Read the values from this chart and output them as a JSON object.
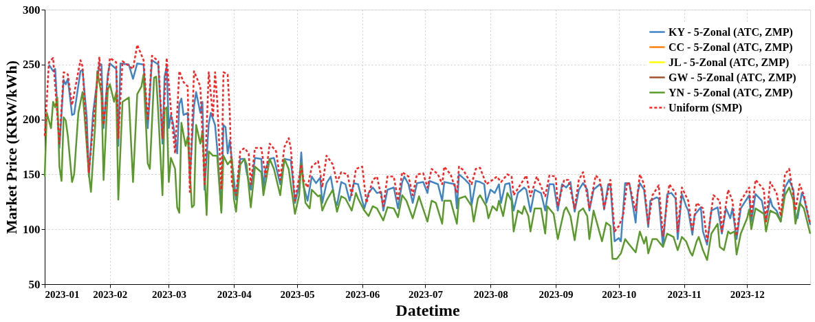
{
  "chart_data": {
    "type": "line",
    "xlabel": "Datetime",
    "ylabel": "Market Price (KRW/kWh)",
    "xlim": [
      "2023-01-01",
      "2023-12-31"
    ],
    "xticks": [
      "2023-01",
      "2023-02",
      "2023-03",
      "2023-04",
      "2023-05",
      "2023-06",
      "2023-07",
      "2023-08",
      "2023-09",
      "2023-10",
      "2023-11",
      "2023-12"
    ],
    "ylim": [
      50,
      300
    ],
    "yticks": [
      50,
      100,
      150,
      200,
      250,
      300
    ],
    "grid": true,
    "legend": "top right",
    "marker": "none",
    "series": [
      {
        "name": "KY - 5-Zonal (ATC, ZMP)",
        "color": "#3f85c6",
        "line_style": "solid",
        "x": [
          "2023-01-03",
          "2023-01-05",
          "2023-01-06",
          "2023-01-08",
          "2023-01-10",
          "2023-01-11",
          "2023-01-12",
          "2023-01-14",
          "2023-01-15",
          "2023-01-18",
          "2023-01-19",
          "2023-01-21",
          "2023-01-22",
          "2023-01-24",
          "2023-01-27",
          "2023-01-28",
          "2023-01-29",
          "2023-01-31",
          "2023-02-01",
          "2023-02-04",
          "2023-02-05",
          "2023-02-06",
          "2023-02-10",
          "2023-02-12",
          "2023-02-14",
          "2023-02-17",
          "2023-02-19",
          "2023-02-21",
          "2023-02-24",
          "2023-02-26",
          "2023-02-27",
          "2023-02-28",
          "2023-03-01",
          "2023-03-02",
          "2023-03-03",
          "2023-03-05",
          "2023-03-06",
          "2023-03-07",
          "2023-03-08",
          "2023-03-10",
          "2023-03-11",
          "2023-03-13",
          "2023-03-14",
          "2023-03-16",
          "2023-03-17",
          "2023-03-18",
          "2023-03-20",
          "2023-03-21",
          "2023-03-23",
          "2023-03-24",
          "2023-03-26",
          "2023-03-27",
          "2023-03-28",
          "2023-03-29",
          "2023-03-30",
          "2023-04-01",
          "2023-04-02",
          "2023-04-04",
          "2023-04-06",
          "2023-04-07",
          "2023-04-09",
          "2023-04-11",
          "2023-04-14",
          "2023-04-15",
          "2023-04-16",
          "2023-04-18",
          "2023-04-20",
          "2023-04-23",
          "2023-04-25",
          "2023-04-28",
          "2023-04-29",
          "2023-04-30",
          "2023-05-02",
          "2023-05-03",
          "2023-05-04",
          "2023-05-06",
          "2023-05-08",
          "2023-05-10",
          "2023-05-12",
          "2023-05-13",
          "2023-05-15",
          "2023-05-17",
          "2023-05-19",
          "2023-05-20",
          "2023-05-22",
          "2023-05-24",
          "2023-05-26",
          "2023-05-28",
          "2023-05-30",
          "2023-06-01",
          "2023-06-02",
          "2023-06-04",
          "2023-06-06",
          "2023-06-08",
          "2023-06-10",
          "2023-06-11",
          "2023-06-13",
          "2023-06-16",
          "2023-06-18",
          "2023-06-20",
          "2023-06-21",
          "2023-06-23",
          "2023-06-25",
          "2023-06-27",
          "2023-06-30",
          "2023-07-02",
          "2023-07-03",
          "2023-07-07",
          "2023-07-09",
          "2023-07-10",
          "2023-07-15",
          "2023-07-16",
          "2023-07-17",
          "2023-07-20",
          "2023-07-22",
          "2023-07-23",
          "2023-07-25",
          "2023-07-27",
          "2023-07-29",
          "2023-07-30",
          "2023-08-01",
          "2023-08-03",
          "2023-08-05",
          "2023-08-06",
          "2023-08-08",
          "2023-08-10",
          "2023-08-12",
          "2023-08-14",
          "2023-08-17",
          "2023-08-18",
          "2023-08-20",
          "2023-08-22",
          "2023-08-25",
          "2023-08-27",
          "2023-08-29",
          "2023-08-31",
          "2023-09-02",
          "2023-09-04",
          "2023-09-06",
          "2023-09-08",
          "2023-09-10",
          "2023-09-12",
          "2023-09-14",
          "2023-09-16",
          "2023-09-17",
          "2023-09-19",
          "2023-09-22",
          "2023-09-23",
          "2023-09-24",
          "2023-09-26",
          "2023-09-27",
          "2023-09-29",
          "2023-10-01",
          "2023-10-02",
          "2023-10-04",
          "2023-10-06",
          "2023-10-09",
          "2023-10-10",
          "2023-10-11",
          "2023-10-13",
          "2023-10-15",
          "2023-10-16",
          "2023-10-19",
          "2023-10-20",
          "2023-10-22",
          "2023-10-24",
          "2023-10-26",
          "2023-10-28",
          "2023-10-29",
          "2023-10-31",
          "2023-11-02",
          "2023-11-03",
          "2023-11-05",
          "2023-11-06",
          "2023-11-09",
          "2023-11-10",
          "2023-11-12",
          "2023-11-14",
          "2023-11-17",
          "2023-11-19",
          "2023-11-21",
          "2023-11-23",
          "2023-11-24",
          "2023-11-26",
          "2023-11-28",
          "2023-12-02",
          "2023-12-03",
          "2023-12-05",
          "2023-12-08",
          "2023-12-10",
          "2023-12-12",
          "2023-12-13",
          "2023-12-15",
          "2023-12-17",
          "2023-12-19",
          "2023-12-21",
          "2023-12-23",
          "2023-12-24",
          "2023-12-25",
          "2023-12-27",
          "2023-12-28",
          "2023-12-31"
        ],
        "values": [
          250,
          244,
          246,
          174,
          236,
          232,
          237,
          204,
          205,
          244,
          245,
          202,
          148,
          206,
          251,
          250,
          192,
          241,
          251,
          246,
          176,
          251,
          250,
          237,
          251,
          250,
          192,
          254,
          250,
          178,
          239,
          248,
          192,
          204,
          197,
          169,
          214,
          219,
          204,
          206,
          145,
          212,
          225,
          206,
          216,
          136,
          196,
          206,
          195,
          174,
          117,
          195,
          193,
          169,
          181,
          145,
          127,
          164,
          164,
          152,
          136,
          165,
          164,
          138,
          155,
          164,
          165,
          141,
          164,
          163,
          145,
          124,
          140,
          170,
          140,
          126,
          148,
          142,
          147,
          124,
          142,
          148,
          126,
          122,
          143,
          141,
          126,
          142,
          141,
          126,
          119,
          133,
          138,
          133,
          134,
          117,
          136,
          138,
          119,
          143,
          148,
          141,
          124,
          142,
          143,
          133,
          144,
          141,
          126,
          143,
          141,
          119,
          150,
          145,
          141,
          122,
          144,
          143,
          141,
          124,
          136,
          133,
          141,
          124,
          141,
          142,
          117,
          133,
          138,
          136,
          116,
          136,
          133,
          117,
          141,
          141,
          117,
          141,
          138,
          143,
          116,
          136,
          142,
          136,
          117,
          136,
          141,
          137,
          118,
          141,
          140,
          89,
          92,
          89,
          142,
          142,
          106,
          133,
          142,
          136,
          102,
          126,
          129,
          128,
          84,
          132,
          133,
          128,
          91,
          132,
          121,
          117,
          95,
          113,
          120,
          98,
          86,
          117,
          120,
          96,
          119,
          110,
          119,
          91,
          119,
          131,
          107,
          132,
          126,
          107,
          128,
          121,
          117,
          107,
          138,
          145,
          136,
          112,
          110,
          133,
          129,
          104
        ]
      },
      {
        "name": "CC - 5-Zonal (ATC, ZMP)",
        "color": "#ff7f0e",
        "line_style": "solid"
      },
      {
        "name": "JL - 5-Zonal (ATC, ZMP)",
        "color": "#ffff00",
        "line_style": "solid"
      },
      {
        "name": "GW - 5-Zonal (ATC, ZMP)",
        "color": "#a0522d",
        "line_style": "solid"
      },
      {
        "name": "YN - 5-Zonal (ATC, ZMP)",
        "color": "#5a9a2a",
        "line_style": "solid",
        "x": [
          "2023-01-01",
          "2023-01-02",
          "2023-01-04",
          "2023-01-05",
          "2023-01-06",
          "2023-01-07",
          "2023-01-08",
          "2023-01-09",
          "2023-01-10",
          "2023-01-11",
          "2023-01-12",
          "2023-01-14",
          "2023-01-15",
          "2023-01-17",
          "2023-01-19",
          "2023-01-20",
          "2023-01-22",
          "2023-01-23",
          "2023-01-25",
          "2023-01-26",
          "2023-01-28",
          "2023-01-29",
          "2023-01-31",
          "2023-02-01",
          "2023-02-03",
          "2023-02-04",
          "2023-02-05",
          "2023-02-07",
          "2023-02-10",
          "2023-02-12",
          "2023-02-14",
          "2023-02-16",
          "2023-02-17",
          "2023-02-19",
          "2023-02-20",
          "2023-02-22",
          "2023-02-23",
          "2023-02-24",
          "2023-02-26",
          "2023-02-27",
          "2023-02-28",
          "2023-03-01",
          "2023-03-02",
          "2023-03-04",
          "2023-03-05",
          "2023-03-06",
          "2023-03-07",
          "2023-03-09",
          "2023-03-10",
          "2023-03-12",
          "2023-03-13",
          "2023-03-14",
          "2023-03-16",
          "2023-03-17",
          "2023-03-19",
          "2023-03-20",
          "2023-03-22",
          "2023-03-24",
          "2023-03-26",
          "2023-03-27",
          "2023-03-29",
          "2023-03-31",
          "2023-04-01",
          "2023-04-02",
          "2023-04-04",
          "2023-04-06",
          "2023-04-07",
          "2023-04-09",
          "2023-04-11",
          "2023-04-14",
          "2023-04-15",
          "2023-04-18",
          "2023-04-20",
          "2023-04-23",
          "2023-04-25",
          "2023-04-27",
          "2023-04-30",
          "2023-05-02",
          "2023-05-03",
          "2023-05-05",
          "2023-05-07",
          "2023-05-08",
          "2023-05-11",
          "2023-05-12",
          "2023-05-13",
          "2023-05-15",
          "2023-05-18",
          "2023-05-20",
          "2023-05-22",
          "2023-05-24",
          "2023-05-27",
          "2023-05-29",
          "2023-05-30",
          "2023-06-02",
          "2023-06-04",
          "2023-06-06",
          "2023-06-08",
          "2023-06-11",
          "2023-06-13",
          "2023-06-16",
          "2023-06-18",
          "2023-06-20",
          "2023-06-22",
          "2023-06-25",
          "2023-06-28",
          "2023-06-29",
          "2023-07-02",
          "2023-07-04",
          "2023-07-06",
          "2023-07-09",
          "2023-07-10",
          "2023-07-13",
          "2023-07-16",
          "2023-07-17",
          "2023-07-20",
          "2023-07-23",
          "2023-07-24",
          "2023-07-26",
          "2023-07-27",
          "2023-07-30",
          "2023-07-31",
          "2023-08-02",
          "2023-08-04",
          "2023-08-05",
          "2023-08-07",
          "2023-08-09",
          "2023-08-11",
          "2023-08-12",
          "2023-08-14",
          "2023-08-16",
          "2023-08-17",
          "2023-08-19",
          "2023-08-20",
          "2023-08-22",
          "2023-08-25",
          "2023-08-27",
          "2023-08-28",
          "2023-08-31",
          "2023-09-02",
          "2023-09-05",
          "2023-09-06",
          "2023-09-08",
          "2023-09-10",
          "2023-09-12",
          "2023-09-14",
          "2023-09-16",
          "2023-09-17",
          "2023-09-19",
          "2023-09-21",
          "2023-09-23",
          "2023-09-25",
          "2023-09-27",
          "2023-09-28",
          "2023-09-30",
          "2023-10-02",
          "2023-10-04",
          "2023-10-06",
          "2023-10-09",
          "2023-10-11",
          "2023-10-13",
          "2023-10-14",
          "2023-10-15",
          "2023-10-17",
          "2023-10-19",
          "2023-10-22",
          "2023-10-24",
          "2023-10-27",
          "2023-10-29",
          "2023-10-31",
          "2023-11-02",
          "2023-11-04",
          "2023-11-05",
          "2023-11-07",
          "2023-11-08",
          "2023-11-10",
          "2023-11-12",
          "2023-11-14",
          "2023-11-17",
          "2023-11-18",
          "2023-11-20",
          "2023-11-22",
          "2023-11-23",
          "2023-11-25",
          "2023-11-26",
          "2023-11-28",
          "2023-12-01",
          "2023-12-02",
          "2023-12-03",
          "2023-12-05",
          "2023-12-09",
          "2023-12-10",
          "2023-12-12",
          "2023-12-15",
          "2023-12-17",
          "2023-12-19",
          "2023-12-21",
          "2023-12-23",
          "2023-12-24",
          "2023-12-26",
          "2023-12-28",
          "2023-12-31"
        ],
        "values": [
          148,
          206,
          192,
          216,
          211,
          220,
          157,
          144,
          202,
          199,
          185,
          143,
          150,
          206,
          225,
          202,
          150,
          134,
          195,
          244,
          223,
          145,
          227,
          232,
          216,
          225,
          127,
          216,
          220,
          143,
          223,
          230,
          241,
          160,
          155,
          238,
          239,
          206,
          131,
          209,
          211,
          143,
          165,
          155,
          120,
          115,
          197,
          176,
          184,
          120,
          122,
          195,
          178,
          189,
          113,
          171,
          167,
          167,
          115,
          167,
          159,
          164,
          127,
          116,
          159,
          164,
          159,
          120,
          157,
          152,
          131,
          164,
          155,
          131,
          164,
          155,
          114,
          131,
          160,
          124,
          119,
          136,
          130,
          131,
          117,
          126,
          136,
          116,
          130,
          128,
          117,
          133,
          128,
          117,
          112,
          121,
          119,
          108,
          120,
          119,
          111,
          131,
          126,
          110,
          130,
          124,
          107,
          126,
          124,
          105,
          126,
          126,
          105,
          128,
          130,
          121,
          107,
          128,
          131,
          121,
          110,
          121,
          117,
          126,
          112,
          133,
          126,
          98,
          117,
          114,
          121,
          112,
          98,
          119,
          119,
          96,
          121,
          114,
          91,
          117,
          120,
          112,
          90,
          116,
          119,
          112,
          91,
          117,
          103,
          89,
          106,
          103,
          73,
          73,
          78,
          91,
          86,
          79,
          98,
          87,
          93,
          78,
          91,
          91,
          84,
          96,
          93,
          81,
          93,
          89,
          79,
          76,
          89,
          93,
          81,
          72,
          96,
          105,
          84,
          81,
          98,
          96,
          98,
          77,
          96,
          110,
          118,
          100,
          119,
          114,
          98,
          117,
          114,
          107,
          131,
          138,
          126,
          105,
          124,
          119,
          96
        ]
      },
      {
        "name": "Uniform (SMP)",
        "color": "#ff2020",
        "line_style": "dashed",
        "x": [
          "2023-01-01",
          "2023-01-03",
          "2023-01-05",
          "2023-01-08",
          "2023-01-10",
          "2023-01-12",
          "2023-01-14",
          "2023-01-18",
          "2023-01-19",
          "2023-01-22",
          "2023-01-27",
          "2023-01-29",
          "2023-02-01",
          "2023-02-04",
          "2023-02-05",
          "2023-02-07",
          "2023-02-12",
          "2023-02-14",
          "2023-02-17",
          "2023-02-19",
          "2023-02-21",
          "2023-02-24",
          "2023-02-26",
          "2023-02-28",
          "2023-03-02",
          "2023-03-04",
          "2023-03-06",
          "2023-03-08",
          "2023-03-10",
          "2023-03-11",
          "2023-03-13",
          "2023-03-16",
          "2023-03-18",
          "2023-03-20",
          "2023-03-22",
          "2023-03-23",
          "2023-03-24",
          "2023-03-26",
          "2023-03-27",
          "2023-03-29",
          "2023-03-30",
          "2023-03-31",
          "2023-04-02",
          "2023-04-04",
          "2023-04-06",
          "2023-04-08",
          "2023-04-09",
          "2023-04-11",
          "2023-04-14",
          "2023-04-16",
          "2023-04-18",
          "2023-04-21",
          "2023-04-23",
          "2023-04-25",
          "2023-04-27",
          "2023-04-28",
          "2023-04-30",
          "2023-05-03",
          "2023-05-04",
          "2023-05-06",
          "2023-05-08",
          "2023-05-11",
          "2023-05-12",
          "2023-05-13",
          "2023-05-15",
          "2023-05-18",
          "2023-05-20",
          "2023-05-22",
          "2023-05-25",
          "2023-05-27",
          "2023-05-29",
          "2023-06-01",
          "2023-06-03",
          "2023-06-06",
          "2023-06-08",
          "2023-06-11",
          "2023-06-13",
          "2023-06-16",
          "2023-06-18",
          "2023-06-20",
          "2023-06-23",
          "2023-06-25",
          "2023-06-27",
          "2023-06-30",
          "2023-07-02",
          "2023-07-04",
          "2023-07-07",
          "2023-07-09",
          "2023-07-10",
          "2023-07-13",
          "2023-07-16",
          "2023-07-17",
          "2023-07-19",
          "2023-07-23",
          "2023-07-25",
          "2023-07-27",
          "2023-07-30",
          "2023-08-02",
          "2023-08-04",
          "2023-08-06",
          "2023-08-09",
          "2023-08-11",
          "2023-08-12",
          "2023-08-16",
          "2023-08-18",
          "2023-08-20",
          "2023-08-23",
          "2023-08-27",
          "2023-08-29",
          "2023-09-01",
          "2023-09-02",
          "2023-09-05",
          "2023-09-07",
          "2023-09-10",
          "2023-09-12",
          "2023-09-14",
          "2023-09-17",
          "2023-09-20",
          "2023-09-22",
          "2023-09-24",
          "2023-09-27",
          "2023-09-29",
          "2023-10-01",
          "2023-10-03",
          "2023-10-05",
          "2023-10-06",
          "2023-10-09",
          "2023-10-11",
          "2023-10-13",
          "2023-10-15",
          "2023-10-17",
          "2023-10-20",
          "2023-10-22",
          "2023-10-25",
          "2023-10-28",
          "2023-10-29",
          "2023-10-31",
          "2023-11-03",
          "2023-11-05",
          "2023-11-07",
          "2023-11-10",
          "2023-11-12",
          "2023-11-15",
          "2023-11-18",
          "2023-11-19",
          "2023-11-22",
          "2023-11-24",
          "2023-11-26",
          "2023-11-28",
          "2023-12-02",
          "2023-12-03",
          "2023-12-05",
          "2023-12-09",
          "2023-12-10",
          "2023-12-12",
          "2023-12-15",
          "2023-12-17",
          "2023-12-19",
          "2023-12-21",
          "2023-12-23",
          "2023-12-24",
          "2023-12-26",
          "2023-12-28",
          "2023-12-31"
        ],
        "values": [
          185,
          252,
          256,
          178,
          243,
          241,
          213,
          254,
          248,
          152,
          257,
          195,
          256,
          252,
          183,
          253,
          246,
          268,
          254,
          199,
          258,
          253,
          183,
          256,
          209,
          169,
          244,
          234,
          230,
          134,
          244,
          230,
          141,
          243,
          202,
          243,
          218,
          136,
          243,
          241,
          206,
          141,
          131,
          171,
          174,
          169,
          141,
          174,
          174,
          148,
          178,
          171,
          145,
          175,
          183,
          174,
          126,
          159,
          145,
          138,
          157,
          162,
          152,
          138,
          167,
          159,
          143,
          152,
          150,
          131,
          155,
          157,
          124,
          145,
          148,
          121,
          148,
          148,
          126,
          152,
          148,
          131,
          150,
          151,
          138,
          155,
          150,
          141,
          157,
          150,
          133,
          157,
          154,
          141,
          155,
          156,
          141,
          145,
          148,
          143,
          150,
          148,
          131,
          143,
          149,
          130,
          148,
          130,
          149,
          148,
          121,
          145,
          145,
          119,
          145,
          152,
          119,
          149,
          145,
          119,
          145,
          98,
          103,
          112,
          143,
          141,
          117,
          150,
          141,
          105,
          131,
          140,
          94,
          141,
          133,
          98,
          138,
          126,
          98,
          124,
          119,
          89,
          131,
          126,
          98,
          136,
          126,
          94,
          126,
          138,
          112,
          145,
          136,
          107,
          143,
          133,
          112,
          150,
          155,
          131,
          117,
          141,
          131,
          105
        ]
      }
    ]
  }
}
